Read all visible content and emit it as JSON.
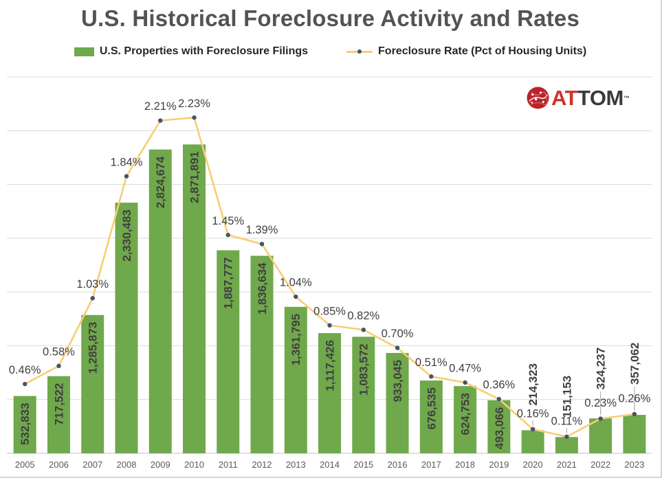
{
  "title": "U.S. Historical Foreclosure Activity and Rates",
  "legend": [
    {
      "label": "U.S. Properties with Foreclosure Filings",
      "swatch": "bar",
      "color": "#70A84C"
    },
    {
      "label": "Foreclosure Rate (Pct of Housing Units)",
      "swatch": "line",
      "color": "#F6CE74",
      "marker_color": "#44546A"
    }
  ],
  "logo": {
    "name": "attom-logo",
    "red": "AT",
    "dark": "TOM",
    "tm": "™"
  },
  "chart_data": {
    "type": "bar",
    "subtype": "bar+line combo, dual axis",
    "title": "U.S. Historical Foreclosure Activity and Rates",
    "categories": [
      "2005",
      "2006",
      "2007",
      "2008",
      "2009",
      "2010",
      "2011",
      "2012",
      "2013",
      "2014",
      "2015",
      "2016",
      "2017",
      "2018",
      "2019",
      "2020",
      "2021",
      "2022",
      "2023"
    ],
    "series": [
      {
        "name": "U.S. Properties with Foreclosure Filings",
        "type": "bar",
        "color": "#70A84C",
        "values": [
          532833,
          717522,
          1285873,
          2330483,
          2824674,
          2871891,
          1887777,
          1836634,
          1361795,
          1117426,
          1083572,
          933045,
          676535,
          624753,
          493066,
          214323,
          151153,
          324237,
          357062
        ],
        "labels": [
          "532,833",
          "717,522",
          "1,285,873",
          "2,330,483",
          "2,824,674",
          "2,871,891",
          "1,887,777",
          "1,836,634",
          "1,361,795",
          "1,117,426",
          "1,083,572",
          "933,045",
          "676,535",
          "624,753",
          "493,066",
          "214,323",
          "151,153",
          "324,237",
          "357,062"
        ]
      },
      {
        "name": "Foreclosure Rate (Pct of Housing Units)",
        "type": "line",
        "color": "#F6CE74",
        "marker_color": "#44546A",
        "values": [
          0.46,
          0.58,
          1.03,
          1.84,
          2.21,
          2.23,
          1.45,
          1.39,
          1.04,
          0.85,
          0.82,
          0.7,
          0.51,
          0.47,
          0.36,
          0.16,
          0.11,
          0.23,
          0.26
        ],
        "labels": [
          "0.46%",
          "0.58%",
          "1.03%",
          "1.84%",
          "2.21%",
          "2.23%",
          "1.45%",
          "1.39%",
          "1.04%",
          "0.85%",
          "0.82%",
          "0.70%",
          "0.51%",
          "0.47%",
          "0.36%",
          "0.16%",
          "0.11%",
          "0.23%",
          "0.26%"
        ]
      }
    ],
    "bar_axis": {
      "min": 0,
      "max": 3500000,
      "gridline_step": 500000,
      "visible_labels": false
    },
    "rate_axis": {
      "min": 0,
      "max": 2.5,
      "visible_labels": false
    },
    "grid": true,
    "gridline_color": "#d9d9d9",
    "axis_line_color": "#bfbfbf",
    "label_color": "#3f3f3f",
    "xtick_color": "#595959",
    "legend_position": "top",
    "callout_years": [
      "2020",
      "2021",
      "2022",
      "2023"
    ]
  }
}
